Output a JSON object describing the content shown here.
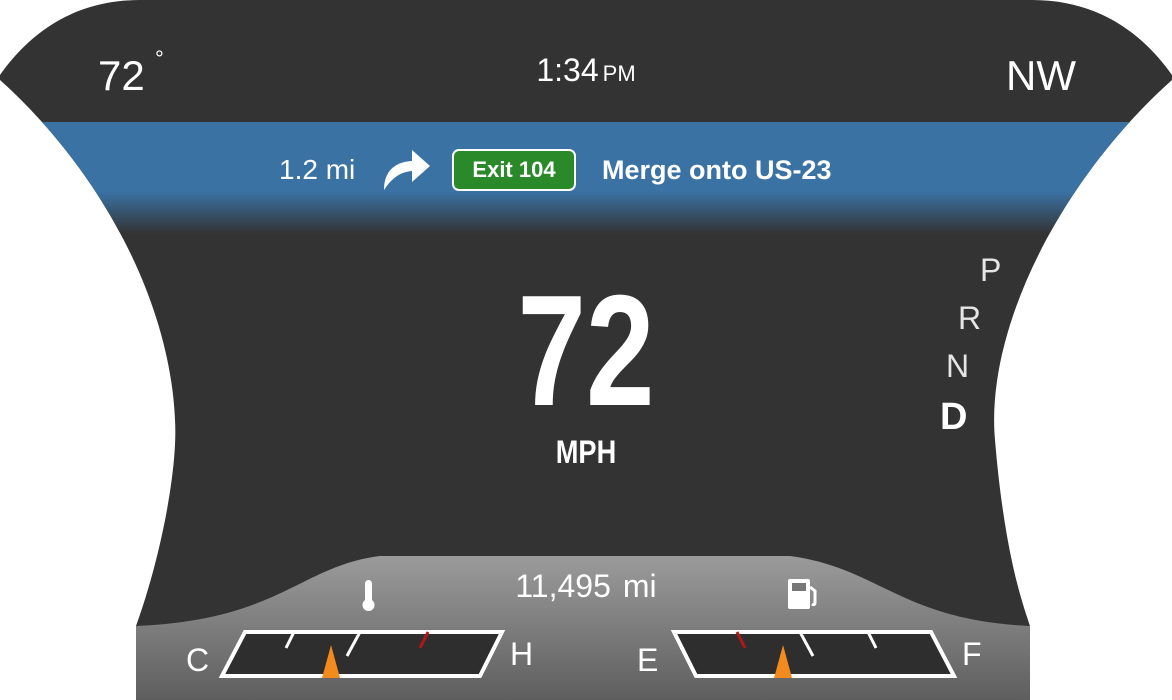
{
  "status_bar": {
    "outside_temp": "72",
    "temp_unit_symbol": "°",
    "time": "1:34",
    "ampm": "PM",
    "heading": "NW"
  },
  "navigation": {
    "distance": "1.2 mi",
    "turn_icon": "turn-right-arrow-icon",
    "exit_label": "Exit 104",
    "instruction": "Merge onto US-23"
  },
  "speedometer": {
    "speed": "72",
    "unit": "MPH"
  },
  "gear_selector": {
    "gears": [
      "P",
      "R",
      "N",
      "D"
    ],
    "selected": "D"
  },
  "odometer": {
    "value": "11,495",
    "unit": "mi"
  },
  "temperature_gauge": {
    "icon": "thermometer-icon",
    "low_label": "C",
    "high_label": "H",
    "level": 0.38
  },
  "fuel_gauge": {
    "icon": "fuel-pump-icon",
    "low_label": "E",
    "high_label": "F",
    "level": 0.38
  },
  "colors": {
    "background": "#333333",
    "nav_banner": "#3a72a4",
    "exit_badge": "#2a8a2a",
    "gauge_panel": "#777777",
    "needle": "#f28a1e",
    "redline": "#b01818",
    "text": "#ffffff"
  }
}
